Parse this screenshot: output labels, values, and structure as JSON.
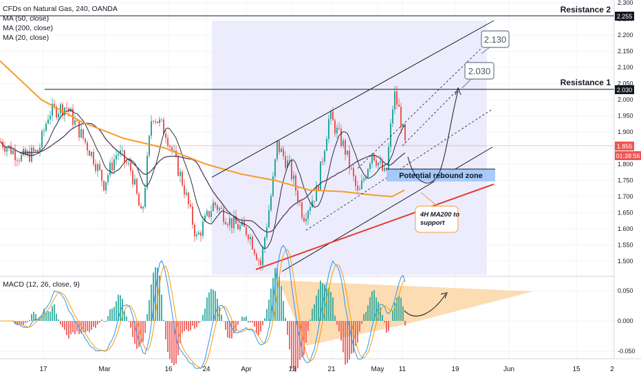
{
  "header": {
    "title": "CFDs on Natural Gas, 240, OANDA",
    "indicators": [
      "MA (50, close)",
      "MA (200, close)",
      "MA (20, close)"
    ],
    "macd_label": "MACD (12, 26, close, 9)"
  },
  "annotations": {
    "resistance_2": "Resistance 2",
    "resistance_1": "Resistance 1",
    "target_high": "2.130",
    "target_low": "2.030",
    "rebound_zone": "Potential rebound zone",
    "ma200_note": "4H MA200 to support"
  },
  "price_scale": {
    "ticks": [
      "2.300",
      "2.250",
      "2.200",
      "2.150",
      "2.100",
      "2.050",
      "2.000",
      "1.950",
      "1.900",
      "1.850",
      "1.800",
      "1.750",
      "1.700",
      "1.650",
      "1.600",
      "1.550",
      "1.500"
    ],
    "badge_resistance_2": "2.255",
    "badge_resistance_1": "2.030",
    "badge_last": "1.855",
    "badge_timer": "01:38:56"
  },
  "macd_scale": {
    "ticks": [
      "0.050",
      "0.000",
      "-0.050"
    ]
  },
  "time_axis": {
    "labels": [
      "17",
      "Mar",
      "16",
      "24",
      "Apr",
      "13",
      "21",
      "May",
      "11",
      "19",
      "Jun",
      "15",
      "2"
    ]
  },
  "colors": {
    "up": "#26a69a",
    "down": "#ef5350",
    "ma50": "#5d4466",
    "ma200": "#f59c2b",
    "ma20": "#131722",
    "channel": "#131722",
    "channel_fill": "#e9e9fb",
    "support": "#e53935",
    "zone": "#9fc5f8",
    "triangle": "#fcd6a4"
  },
  "chart_data": {
    "type": "candlestick",
    "title": "CFDs on Natural Gas, 240, OANDA",
    "ylim": [
      1.46,
      2.31
    ],
    "levels": {
      "resistance_2": 2.255,
      "resistance_1": 2.03,
      "last_price": 1.855
    },
    "rebound_zone": [
      1.76,
      1.78
    ],
    "macd": {
      "ylim": [
        -0.065,
        0.07
      ],
      "triangle_apex_label": "converging"
    }
  }
}
